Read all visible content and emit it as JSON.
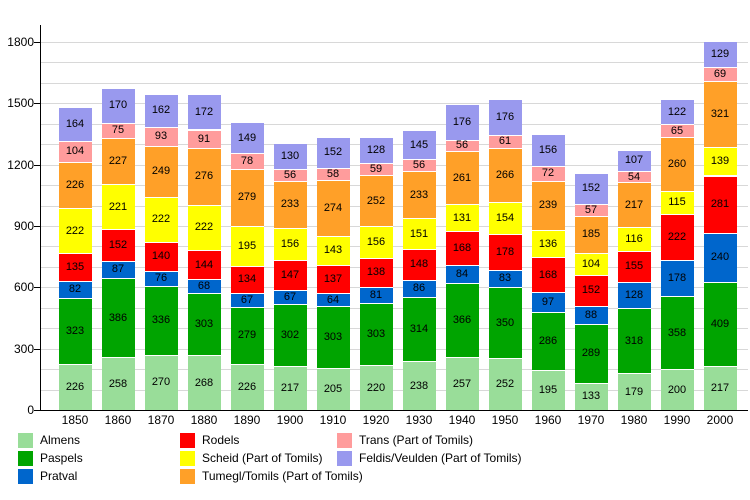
{
  "chart_data": {
    "type": "bar",
    "stacked": true,
    "title": "",
    "xlabel": "",
    "ylabel": "",
    "categories": [
      "1850",
      "1860",
      "1870",
      "1880",
      "1890",
      "1900",
      "1910",
      "1920",
      "1930",
      "1940",
      "1950",
      "1960",
      "1970",
      "1980",
      "1990",
      "2000"
    ],
    "series": [
      {
        "name": "Almens",
        "color": "#99dd99",
        "values": [
          226,
          258,
          270,
          268,
          226,
          217,
          205,
          220,
          238,
          257,
          252,
          195,
          133,
          179,
          200,
          217
        ]
      },
      {
        "name": "Paspels",
        "color": "#00a400",
        "values": [
          323,
          386,
          336,
          303,
          279,
          302,
          303,
          303,
          314,
          366,
          350,
          286,
          289,
          318,
          358,
          409
        ]
      },
      {
        "name": "Pratval",
        "color": "#0066cc",
        "values": [
          82,
          87,
          76,
          68,
          67,
          67,
          64,
          81,
          86,
          84,
          83,
          97,
          88,
          128,
          178,
          240
        ]
      },
      {
        "name": "Rodels",
        "color": "#ff0000",
        "values": [
          135,
          152,
          140,
          144,
          134,
          147,
          137,
          138,
          148,
          168,
          178,
          168,
          152,
          155,
          222,
          281
        ]
      },
      {
        "name": "Scheid (Part of Tomils)",
        "color": "#ffff00",
        "values": [
          222,
          221,
          222,
          222,
          195,
          156,
          143,
          156,
          151,
          131,
          154,
          136,
          104,
          116,
          115,
          139
        ]
      },
      {
        "name": "Tumegl/Tomils (Part of Tomils)",
        "color": "#ffa028",
        "values": [
          226,
          227,
          249,
          276,
          279,
          233,
          274,
          252,
          233,
          261,
          266,
          239,
          185,
          217,
          260,
          321
        ]
      },
      {
        "name": "Trans (Part of Tomils)",
        "color": "#ff9c9c",
        "values": [
          104,
          75,
          93,
          91,
          78,
          56,
          58,
          59,
          56,
          56,
          61,
          72,
          57,
          54,
          65,
          69
        ]
      },
      {
        "name": "Feldis/Veulden (Part of Tomils)",
        "color": "#9999ee",
        "values": [
          164,
          170,
          162,
          172,
          149,
          130,
          152,
          128,
          145,
          176,
          176,
          156,
          152,
          107,
          122,
          129
        ]
      }
    ],
    "ylim": [
      0,
      1800
    ],
    "ytick_step": 300,
    "grid_step": 100,
    "grid": true,
    "segment_labels": true,
    "legend_position": "bottom",
    "legend_columns": [
      [
        "Almens",
        "Paspels",
        "Pratval"
      ],
      [
        "Rodels",
        "Scheid (Part of Tomils)",
        "Tumegl/Tomils (Part of Tomils)"
      ],
      [
        "Trans (Part of Tomils)",
        "Feldis/Veulden (Part of Tomils)"
      ]
    ]
  }
}
